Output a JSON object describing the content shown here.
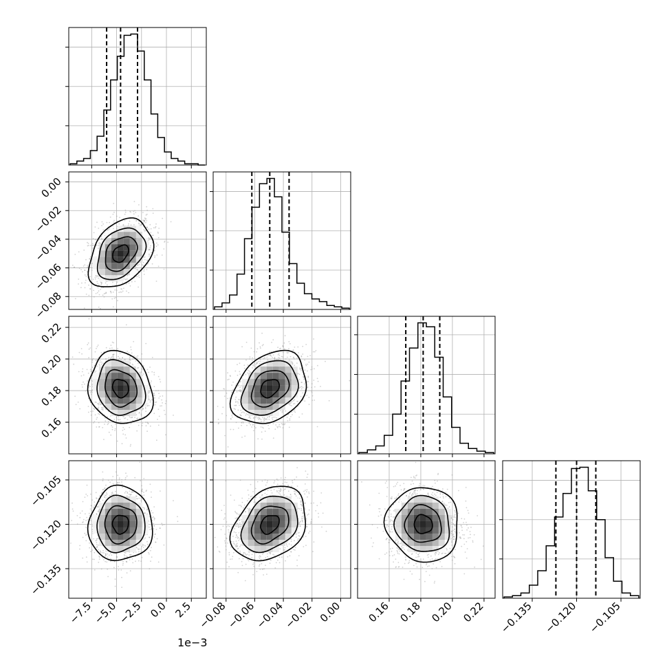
{
  "chart_data": {
    "type": "corner",
    "parameters": [
      {
        "axis_ticks": [
          -7.5,
          -5.0,
          -2.5,
          0.0,
          2.5
        ],
        "tick_labels": [
          "−7.5",
          "−5.0",
          "−2.5",
          "0.0",
          "2.5"
        ],
        "offset_label": "1e−3",
        "range": [
          -9.8,
          4.0
        ],
        "quantiles": [
          -6.0,
          -4.6,
          -2.9
        ],
        "hist_counts": [
          1,
          3,
          5,
          11,
          22,
          42,
          65,
          83,
          99,
          100,
          87,
          65,
          39,
          21,
          10,
          5,
          3,
          1,
          1,
          0
        ]
      },
      {
        "axis_ticks": [
          -0.08,
          -0.06,
          -0.04,
          -0.02,
          0.0
        ],
        "tick_labels": [
          "−0.08",
          "−0.06",
          "−0.04",
          "−0.02",
          "0.00"
        ],
        "range": [
          -0.089,
          0.007
        ],
        "quantiles": [
          -0.062,
          -0.0495,
          -0.036
        ],
        "hist_counts": [
          2,
          5,
          11,
          27,
          54,
          78,
          96,
          100,
          86,
          59,
          35,
          20,
          12,
          8,
          6,
          3,
          2,
          1
        ]
      },
      {
        "axis_ticks": [
          0.16,
          0.18,
          0.2,
          0.22
        ],
        "tick_labels": [
          "0.16",
          "0.18",
          "0.20",
          "0.22"
        ],
        "range": [
          0.14,
          0.227
        ],
        "quantiles": [
          0.1705,
          0.1815,
          0.192
        ],
        "hist_counts": [
          1,
          3,
          6,
          14,
          30,
          55,
          80,
          99,
          96,
          73,
          43,
          20,
          8,
          4,
          2,
          1
        ]
      },
      {
        "axis_ticks": [
          -0.135,
          -0.12,
          -0.105
        ],
        "tick_labels": [
          "−0.135",
          "−0.120",
          "−0.105"
        ],
        "range": [
          -0.145,
          -0.0985
        ],
        "quantiles": [
          -0.127,
          -0.12,
          -0.1135
        ],
        "hist_counts": [
          1,
          2,
          4,
          10,
          21,
          40,
          62,
          80,
          99,
          100,
          82,
          60,
          31,
          13,
          4,
          2
        ]
      }
    ],
    "pairs": [
      {
        "row": 1,
        "col": 0,
        "mean": [
          -4.6,
          -0.05
        ],
        "sd": [
          1.6,
          0.012
        ],
        "corr": 0.35
      },
      {
        "row": 2,
        "col": 0,
        "mean": [
          -4.6,
          0.1815
        ],
        "sd": [
          1.6,
          0.0115
        ],
        "corr": -0.15
      },
      {
        "row": 2,
        "col": 1,
        "mean": [
          -0.0495,
          0.1815
        ],
        "sd": [
          0.013,
          0.0115
        ],
        "corr": 0.3
      },
      {
        "row": 3,
        "col": 0,
        "mean": [
          -4.6,
          -0.12
        ],
        "sd": [
          1.6,
          0.0063
        ],
        "corr": 0.02
      },
      {
        "row": 3,
        "col": 1,
        "mean": [
          -0.0495,
          -0.12
        ],
        "sd": [
          0.013,
          0.0063
        ],
        "corr": 0.3
      },
      {
        "row": 3,
        "col": 2,
        "mean": [
          0.1815,
          -0.12
        ],
        "sd": [
          0.0115,
          0.0063
        ],
        "corr": -0.05
      }
    ],
    "contour_levels_sigma": [
      0.5,
      1.0,
      1.5,
      2.0
    ],
    "grid": true
  }
}
